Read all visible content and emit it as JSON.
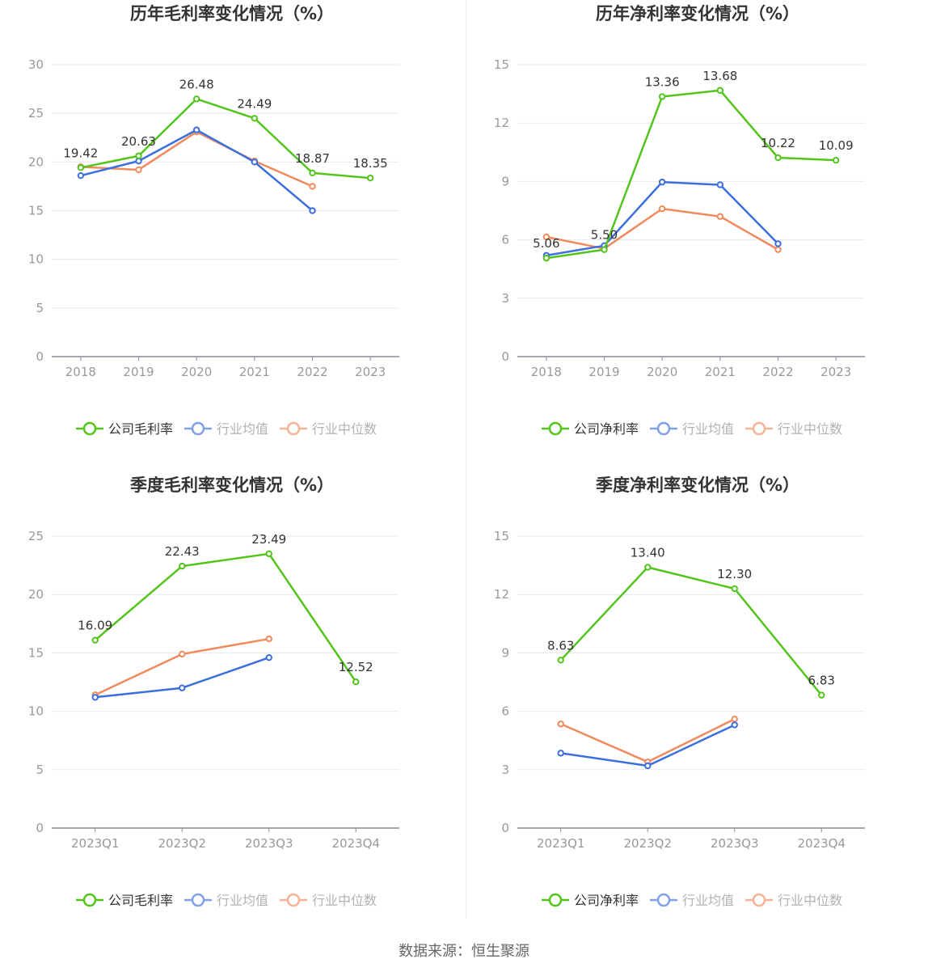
{
  "colors": {
    "company": "#52c41a",
    "industry_avg": "#3b6fde",
    "industry_median": "#f08a5d",
    "axis": "#8c8c9a",
    "grid": "#e6e9f2",
    "tick_label": "#999999",
    "title": "#333333",
    "data_label": "#333333"
  },
  "source": "数据来源：恒生聚源",
  "chart_data": [
    {
      "type": "line",
      "title": "历年毛利率变化情况（%）",
      "categories": [
        "2018",
        "2019",
        "2020",
        "2021",
        "2022",
        "2023"
      ],
      "ylim": [
        0,
        30
      ],
      "yticks": [
        0,
        5,
        10,
        15,
        20,
        25,
        30
      ],
      "grid": true,
      "legend_position": "bottom-center",
      "series": [
        {
          "key": "company",
          "name": "公司毛利率",
          "values": [
            19.42,
            20.63,
            26.48,
            24.49,
            18.87,
            18.35
          ],
          "labels": [
            "19.42",
            "20.63",
            "26.48",
            "24.49",
            "18.87",
            "18.35"
          ]
        },
        {
          "key": "industry_avg",
          "name": "行业均值",
          "values": [
            18.6,
            20.1,
            23.3,
            20.0,
            15.0,
            null
          ]
        },
        {
          "key": "industry_median",
          "name": "行业中位数",
          "values": [
            19.5,
            19.2,
            23.1,
            20.1,
            17.5,
            null
          ]
        }
      ]
    },
    {
      "type": "line",
      "title": "历年净利率变化情况（%）",
      "categories": [
        "2018",
        "2019",
        "2020",
        "2021",
        "2022",
        "2023"
      ],
      "ylim": [
        0,
        15
      ],
      "yticks": [
        0,
        3,
        6,
        9,
        12,
        15
      ],
      "grid": true,
      "legend_position": "bottom-center",
      "series": [
        {
          "key": "company",
          "name": "公司净利率",
          "values": [
            5.06,
            5.5,
            13.36,
            13.68,
            10.22,
            10.09
          ],
          "labels": [
            "5.06",
            "5.50",
            "13.36",
            "13.68",
            "10.22",
            "10.09"
          ]
        },
        {
          "key": "industry_avg",
          "name": "行业均值",
          "values": [
            5.2,
            5.7,
            8.97,
            8.83,
            5.8,
            null
          ]
        },
        {
          "key": "industry_median",
          "name": "行业中位数",
          "values": [
            6.15,
            5.55,
            7.6,
            7.2,
            5.5,
            null
          ]
        }
      ]
    },
    {
      "type": "line",
      "title": "季度毛利率变化情况（%）",
      "categories": [
        "2023Q1",
        "2023Q2",
        "2023Q3",
        "2023Q4"
      ],
      "ylim": [
        0,
        25
      ],
      "yticks": [
        0,
        5,
        10,
        15,
        20,
        25
      ],
      "grid": true,
      "legend_position": "bottom-center",
      "series": [
        {
          "key": "company",
          "name": "公司毛利率",
          "values": [
            16.09,
            22.43,
            23.49,
            12.52
          ],
          "labels": [
            "16.09",
            "22.43",
            "23.49",
            "12.52"
          ]
        },
        {
          "key": "industry_avg",
          "name": "行业均值",
          "values": [
            11.2,
            12.0,
            14.6,
            null
          ]
        },
        {
          "key": "industry_median",
          "name": "行业中位数",
          "values": [
            11.4,
            14.9,
            16.2,
            null
          ]
        }
      ]
    },
    {
      "type": "line",
      "title": "季度净利率变化情况（%）",
      "categories": [
        "2023Q1",
        "2023Q2",
        "2023Q3",
        "2023Q4"
      ],
      "ylim": [
        0,
        15
      ],
      "yticks": [
        0,
        3,
        6,
        9,
        12,
        15
      ],
      "grid": true,
      "legend_position": "bottom-center",
      "series": [
        {
          "key": "company",
          "name": "公司净利率",
          "values": [
            8.63,
            13.4,
            12.3,
            6.83
          ],
          "labels": [
            "8.63",
            "13.40",
            "12.30",
            "6.83"
          ]
        },
        {
          "key": "industry_avg",
          "name": "行业均值",
          "values": [
            3.85,
            3.2,
            5.3,
            null
          ]
        },
        {
          "key": "industry_median",
          "name": "行业中位数",
          "values": [
            5.35,
            3.4,
            5.6,
            null
          ]
        }
      ]
    }
  ]
}
